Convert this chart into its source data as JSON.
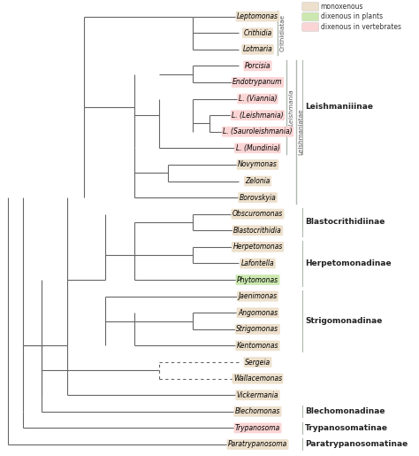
{
  "taxa": [
    {
      "name": "Leptomonas",
      "y": 27,
      "color": "#ede0cc"
    },
    {
      "name": "Crithidia",
      "y": 26,
      "color": "#ede0cc"
    },
    {
      "name": "Lotmaria",
      "y": 25,
      "color": "#ede0cc"
    },
    {
      "name": "Porcisia",
      "y": 24,
      "color": "#fbd5d5"
    },
    {
      "name": "Endotrypanum",
      "y": 23,
      "color": "#fbd5d5"
    },
    {
      "name": "L. (Viannia)",
      "y": 22,
      "color": "#fbd5d5"
    },
    {
      "name": "L. (Leishmania)",
      "y": 21,
      "color": "#fbd5d5"
    },
    {
      "name": "L. (Sauroleishmania)",
      "y": 20,
      "color": "#fbd5d5"
    },
    {
      "name": "L. (Mundinia)",
      "y": 19,
      "color": "#fbd5d5"
    },
    {
      "name": "Novymonas",
      "y": 18,
      "color": "#ede0cc"
    },
    {
      "name": "Zelonia",
      "y": 17,
      "color": "#ede0cc"
    },
    {
      "name": "Borovskyia",
      "y": 16,
      "color": "#ede0cc"
    },
    {
      "name": "Obscuromonas",
      "y": 15,
      "color": "#ede0cc"
    },
    {
      "name": "Blastocrithidia",
      "y": 14,
      "color": "#ede0cc"
    },
    {
      "name": "Herpetomonas",
      "y": 13,
      "color": "#ede0cc"
    },
    {
      "name": "Lafontella",
      "y": 12,
      "color": "#ede0cc"
    },
    {
      "name": "Phytomonas",
      "y": 11,
      "color": "#cce8b0"
    },
    {
      "name": "Jaenimonas",
      "y": 10,
      "color": "#ede0cc"
    },
    {
      "name": "Angomonas",
      "y": 9,
      "color": "#ede0cc"
    },
    {
      "name": "Strigomonas",
      "y": 8,
      "color": "#ede0cc"
    },
    {
      "name": "Kentomonas",
      "y": 7,
      "color": "#ede0cc"
    },
    {
      "name": "Sergeia",
      "y": 6,
      "color": "#ede0cc"
    },
    {
      "name": "Wallacemonas",
      "y": 5,
      "color": "#ede0cc"
    },
    {
      "name": "Vickermania",
      "y": 4,
      "color": "#ede0cc"
    },
    {
      "name": "Blechomonas",
      "y": 3,
      "color": "#ede0cc"
    },
    {
      "name": "Trypanosoma",
      "y": 2,
      "color": "#fbd5d5"
    },
    {
      "name": "Paratrypanosoma",
      "y": 1,
      "color": "#ede0cc"
    }
  ],
  "legend_items": [
    {
      "label": "monoxenous",
      "color": "#ede0cc"
    },
    {
      "label": "dixenous in plants",
      "color": "#cce8b0"
    },
    {
      "label": "dixenous in vertebrates",
      "color": "#fbd5d5"
    }
  ],
  "line_color": "#666666",
  "background": "#ffffff"
}
